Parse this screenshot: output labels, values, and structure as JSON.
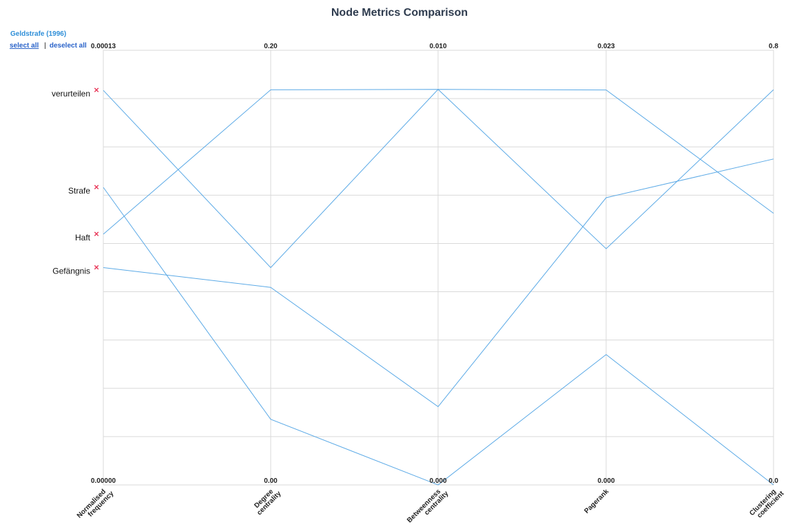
{
  "title": "Node Metrics Comparison",
  "subtitle": "Geldstrafe (1996)",
  "controls": {
    "select_all": "select all",
    "separator": "|",
    "deselect_all": "deselect all"
  },
  "remove_glyph": "×",
  "colors": {
    "line": "#5aa9e6",
    "grid": "#d9d9d9",
    "remove": "#e8395a",
    "title": "#2e3b4e"
  },
  "chart_data": {
    "type": "parallel-coordinates",
    "title": "Node Metrics Comparison",
    "grid": true,
    "axes": [
      {
        "label": [
          "Normalised",
          "frequency"
        ],
        "min": 0,
        "max": 0.00013,
        "min_label": "0.00000",
        "max_label": "0.00013"
      },
      {
        "label": [
          "Degree",
          "centrality"
        ],
        "min": 0,
        "max": 0.2,
        "min_label": "0.00",
        "max_label": "0.20"
      },
      {
        "label": [
          "Betweenness",
          "centrality"
        ],
        "min": 0,
        "max": 0.01,
        "min_label": "0.000",
        "max_label": "0.010"
      },
      {
        "label": [
          "Pagerank"
        ],
        "min": 0,
        "max": 0.023,
        "min_label": "0.000",
        "max_label": "0.023"
      },
      {
        "label": [
          "Clustering",
          "coefficient"
        ],
        "min": 0,
        "max": 0.8,
        "min_label": "0.0",
        "max_label": "0.8"
      }
    ],
    "series": [
      {
        "name": "verurteilen",
        "values": [
          0.000118,
          0.1,
          0.0091,
          0.0209,
          0.5
        ]
      },
      {
        "name": "Strafe",
        "values": [
          8.9e-05,
          0.0302,
          0,
          0.0069,
          0
        ]
      },
      {
        "name": "Haft",
        "values": [
          7.5e-05,
          0.1818,
          0.0091,
          0.0125,
          0.7273
        ]
      },
      {
        "name": "Gefängnis",
        "values": [
          6.5e-05,
          0.0909,
          0.0018,
          0.0152,
          0.6
        ]
      }
    ]
  }
}
